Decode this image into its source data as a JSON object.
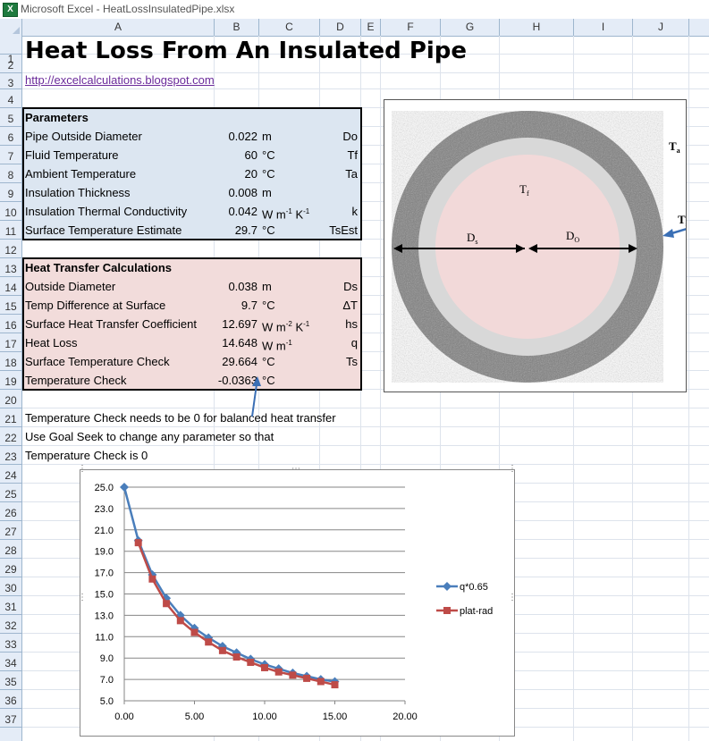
{
  "window": {
    "title": "Microsoft Excel - HeatLossInsulatedPipe.xlsx",
    "app_icon": "X"
  },
  "columns": [
    "A",
    "B",
    "C",
    "D",
    "E",
    "F",
    "G",
    "H",
    "I",
    "J"
  ],
  "rows": [
    "1",
    "2",
    "3",
    "4",
    "5",
    "6",
    "7",
    "8",
    "9",
    "10",
    "11",
    "12",
    "13",
    "14",
    "15",
    "16",
    "17",
    "18",
    "19",
    "20",
    "21",
    "22",
    "23",
    "24",
    "25",
    "26",
    "27",
    "28",
    "29",
    "30",
    "31",
    "32",
    "33",
    "34",
    "35",
    "36",
    "37"
  ],
  "sheet": {
    "title": "Heat Loss From An Insulated Pipe",
    "link": "http://excelcalculations.blogspot.com",
    "parameters": {
      "header": "Parameters",
      "rows": [
        {
          "label": "Pipe Outside Diameter",
          "value": "0.022",
          "unit": "m",
          "sym": "Do"
        },
        {
          "label": "Fluid Temperature",
          "value": "60",
          "unit": "°C",
          "sym": "Tf"
        },
        {
          "label": "Ambient Temperature",
          "value": "20",
          "unit": "°C",
          "sym": "Ta"
        },
        {
          "label": "Insulation Thickness",
          "value": "0.008",
          "unit": "m",
          "sym": ""
        },
        {
          "label": "Insulation Thermal Conductivity",
          "value": "0.042",
          "unit": "W m",
          "sup1": "-1",
          "unit2": " K",
          "sup2": "-1",
          "sym": "k"
        },
        {
          "label": "Surface Temperature Estimate",
          "value": "29.7",
          "unit": "°C",
          "sym": "TsEst"
        }
      ]
    },
    "calcs": {
      "header": "Heat Transfer Calculations",
      "rows": [
        {
          "label": "Outside Diameter",
          "value": "0.038",
          "unit": "m",
          "sym": "Ds"
        },
        {
          "label": "Temp Difference at Surface",
          "value": "9.7",
          "unit": "°C",
          "sym": "ΔT"
        },
        {
          "label": "Surface Heat Transfer Coefficient",
          "value": "12.697",
          "unit": "W m",
          "sup1": "-2",
          "unit2": " K",
          "sup2": "-1",
          "sym": "hs"
        },
        {
          "label": "Heat Loss",
          "value": "14.648",
          "unit": "W m",
          "sup1": "-1",
          "unit2": "",
          "sup2": "",
          "sym": "q"
        },
        {
          "label": "Surface Temperature Check",
          "value": "29.664",
          "unit": "°C",
          "sym": "Ts"
        },
        {
          "label": "Temperature Check",
          "value": "-0.0363",
          "unit": "°C",
          "sym": ""
        }
      ]
    },
    "notes": [
      "Temperature Check needs to be 0 for balanced heat transfer",
      "Use Goal Seek to change any parameter so that",
      "Temperature Check is 0"
    ]
  },
  "diagram": {
    "labels": {
      "ta_base": "T",
      "ta_sub": "a",
      "tf_base": "T",
      "tf_sub": "f",
      "ts_base": "T",
      "ts_sub": "s",
      "ds_base": "D",
      "ds_sub": "s",
      "do_base": "D",
      "do_sub": "O"
    },
    "colors": {
      "insulation": "#8d8d8d",
      "pipe_wall": "#d8d8d8",
      "fluid": "#f2d9d9",
      "arrow": "#3a6fb5"
    }
  },
  "chart_data": {
    "type": "line",
    "x_ticks": [
      "0.00",
      "5.00",
      "10.00",
      "15.00",
      "20.00"
    ],
    "y_ticks": [
      "5.0",
      "7.0",
      "9.0",
      "11.0",
      "13.0",
      "15.0",
      "17.0",
      "19.0",
      "21.0",
      "23.0",
      "25.0"
    ],
    "xlim": [
      0,
      20
    ],
    "ylim": [
      5,
      25
    ],
    "grid": "horizontal",
    "legend_position": "right",
    "series": [
      {
        "name": "q*0.65",
        "color": "#4a7ebb",
        "marker": "diamond",
        "x": [
          0,
          1,
          2,
          3,
          4,
          5,
          6,
          7,
          8,
          9,
          10,
          11,
          12,
          13,
          14,
          15
        ],
        "y": [
          25.0,
          20.0,
          16.8,
          14.6,
          13.0,
          11.8,
          10.9,
          10.1,
          9.5,
          8.9,
          8.4,
          8.0,
          7.6,
          7.3,
          7.0,
          6.8
        ]
      },
      {
        "name": "plat-rad",
        "color": "#be4b48",
        "marker": "square",
        "x": [
          1,
          2,
          3,
          4,
          5,
          6,
          7,
          8,
          9,
          10,
          11,
          12,
          13,
          14,
          15
        ],
        "y": [
          19.8,
          16.4,
          14.1,
          12.5,
          11.4,
          10.5,
          9.7,
          9.1,
          8.6,
          8.1,
          7.7,
          7.4,
          7.1,
          6.8,
          6.5
        ]
      }
    ]
  }
}
